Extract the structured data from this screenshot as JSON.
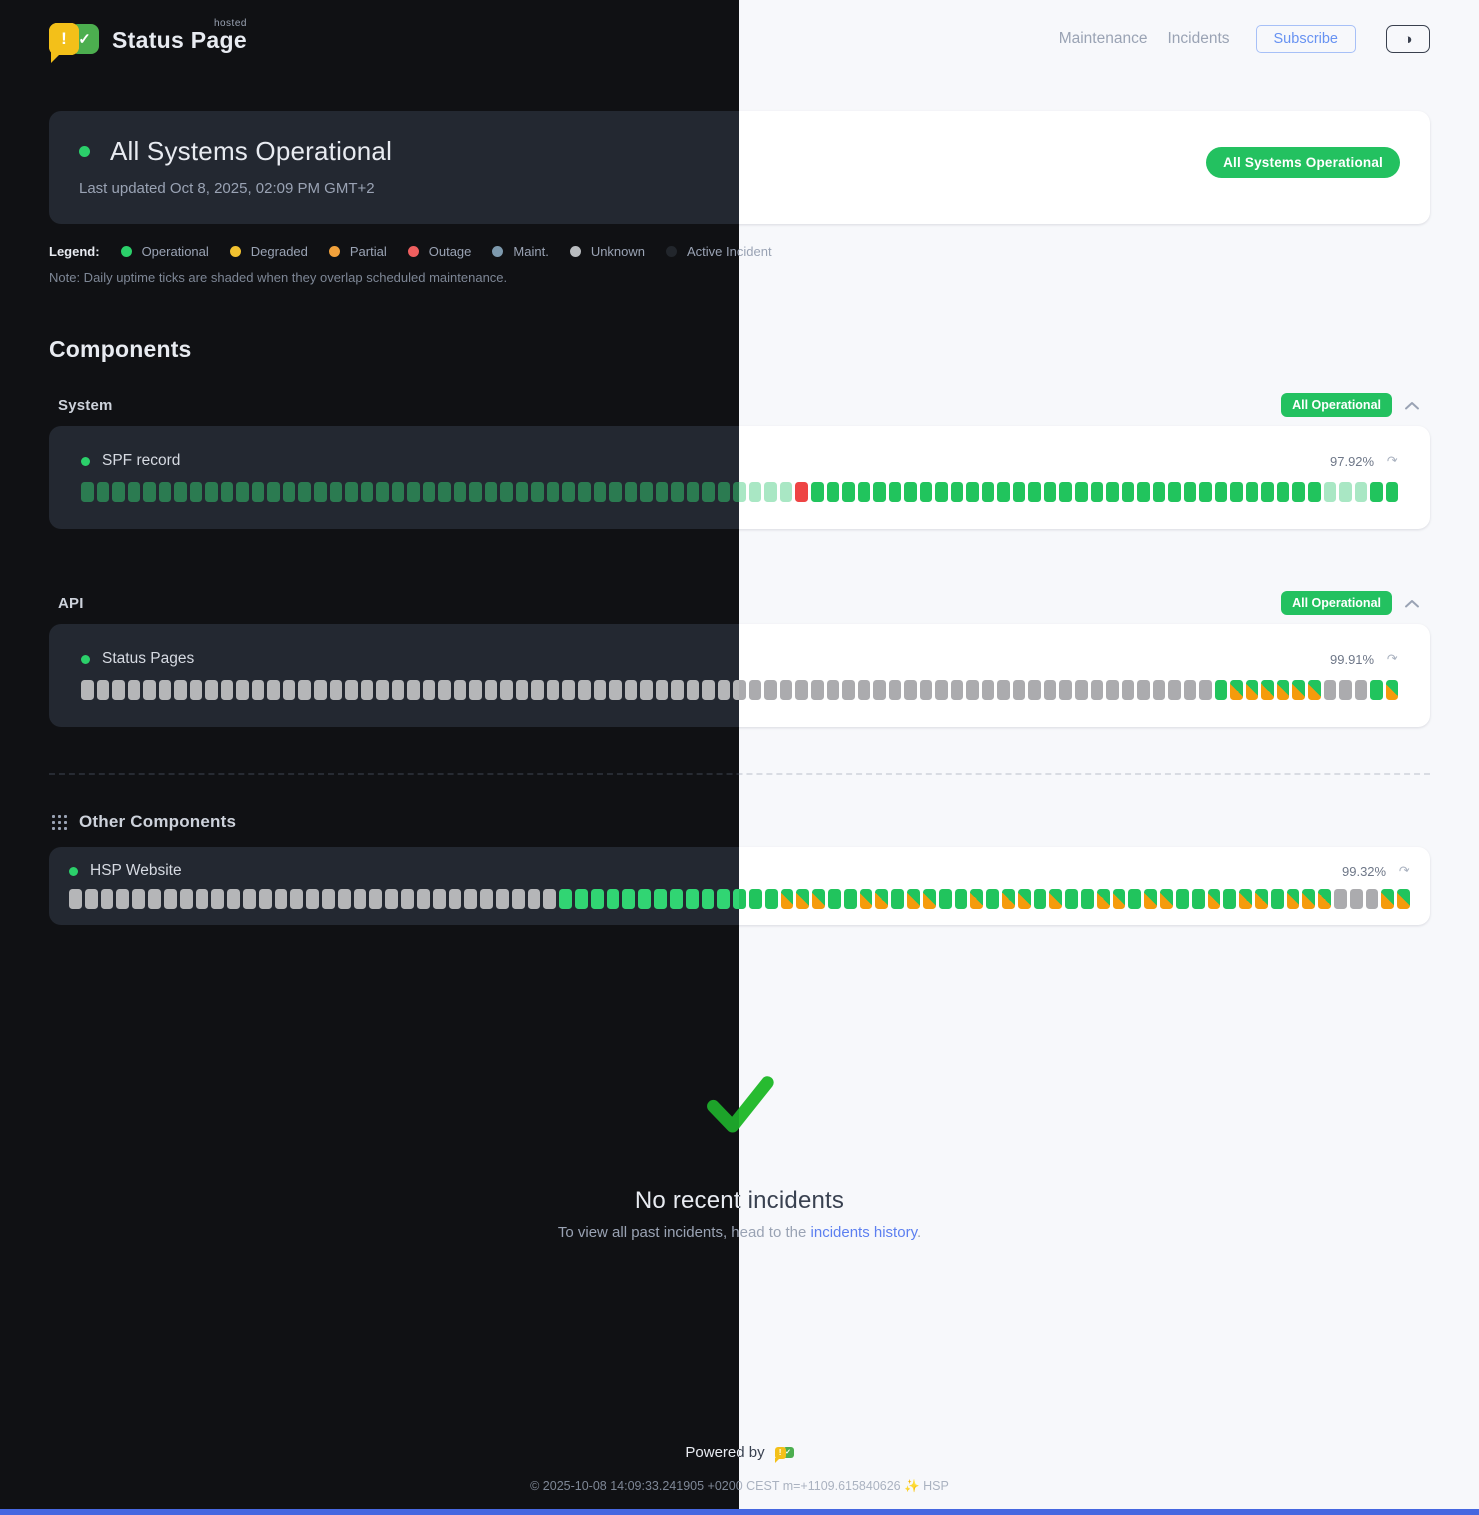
{
  "header": {
    "brand": "Status Page",
    "brand_super": "hosted",
    "nav": [
      {
        "label": "Maintenance"
      },
      {
        "label": "Incidents"
      }
    ],
    "subscribe_label": "Subscribe"
  },
  "icons": {
    "warn_glyph": "!",
    "check_glyph": "✓",
    "theme_toggle_glyph": "◑",
    "refresh_glyph": "↷"
  },
  "hero": {
    "title": "All Systems Operational",
    "last_updated": "Last updated Oct 8, 2025, 02:09 PM GMT+2",
    "badge": "All Systems Operational"
  },
  "legend": {
    "label": "Legend:",
    "items": [
      {
        "label": "Operational",
        "color": "#2bd06a"
      },
      {
        "label": "Degraded",
        "color": "#f2c230"
      },
      {
        "label": "Partial",
        "color": "#f2a23c"
      },
      {
        "label": "Outage",
        "color": "#ef5f5f"
      },
      {
        "label": "Maint.",
        "color": "#7d99ad"
      },
      {
        "label": "Unknown",
        "color": "#b9bcc0"
      },
      {
        "label": "Active Incident",
        "color": "#22262c"
      }
    ],
    "note": "Note: Daily uptime ticks are shaded when they overlap scheduled maintenance."
  },
  "components": {
    "heading": "Components",
    "groups": [
      {
        "name": "System",
        "badge": "All Operational",
        "items": [
          {
            "name": "SPF record",
            "uptime": "97.92%",
            "ticks": [
              [
                "G",
                46
              ],
              [
                "r",
                1
              ],
              [
                "g",
                33
              ],
              [
                "G",
                3
              ],
              [
                "g",
                2
              ]
            ]
          }
        ]
      },
      {
        "name": "API",
        "badge": "All Operational",
        "items": [
          {
            "name": "Status Pages",
            "uptime": "99.91%",
            "ticks": [
              [
                "u",
                73
              ],
              [
                "g",
                1
              ],
              [
                "p",
                6
              ],
              [
                "u",
                3
              ],
              [
                "g",
                1
              ],
              [
                "p",
                1
              ]
            ]
          }
        ]
      }
    ],
    "other": {
      "name": "Other Components",
      "items": [
        {
          "name": "HSP Website",
          "uptime": "99.32%",
          "ticks": [
            [
              "u",
              31
            ],
            [
              "g",
              14
            ],
            [
              "p",
              3
            ],
            [
              "g",
              2
            ],
            [
              "p",
              2
            ],
            [
              "g",
              1
            ],
            [
              "p",
              2
            ],
            [
              "g",
              2
            ],
            [
              "p",
              1
            ],
            [
              "g",
              1
            ],
            [
              "p",
              2
            ],
            [
              "g",
              1
            ],
            [
              "p",
              1
            ],
            [
              "g",
              2
            ],
            [
              "p",
              2
            ],
            [
              "g",
              1
            ],
            [
              "p",
              2
            ],
            [
              "g",
              2
            ],
            [
              "p",
              1
            ],
            [
              "g",
              1
            ],
            [
              "p",
              2
            ],
            [
              "g",
              1
            ],
            [
              "p",
              3
            ],
            [
              "u",
              3
            ],
            [
              "p",
              2
            ]
          ]
        }
      ]
    }
  },
  "tick_codes": {
    "g": "operational",
    "G": "operational-maintenance-shaded",
    "r": "outage",
    "u": "unknown",
    "p": "partial-operational-mixed"
  },
  "incidents_empty": {
    "title": "No recent incidents",
    "body_prefix": "To view all past incidents, head to the ",
    "link_label": "incidents history",
    "body_suffix": "."
  },
  "footer": {
    "powered_by": "Powered by",
    "copyright": "© 2025-10-08 14:09:33.241905 +0200 CEST m=+1109.615840626 ✨ HSP"
  },
  "colors": {
    "operational_tick_light": "#21c45d",
    "operational_tick_dark": "#31d573",
    "maint_shaded_light": "#a9e7c4",
    "maint_shaded_dark": "#2b7b51",
    "outage_tick": "#ee4444",
    "partial_orange": "#f59b0c",
    "unknown_tick": "#ababae",
    "status_badge_green": "#23c160",
    "link_blue": "#5c7ff0",
    "subscribe_blue": "#6792f2",
    "bottom_accent_bar": "#4667e0"
  }
}
